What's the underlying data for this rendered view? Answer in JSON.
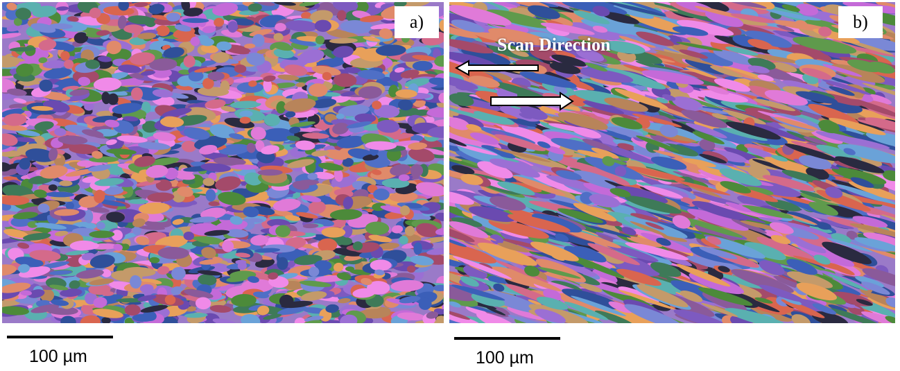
{
  "panels": [
    {
      "label": "a)",
      "scale_bar_text": "100 µm"
    },
    {
      "label": "b)",
      "scale_bar_text": "100 µm"
    }
  ],
  "annotation": {
    "text": "Scan Direction"
  },
  "colors": {
    "grain_palette": [
      "#c46ad8",
      "#7a88d6",
      "#4f6fc6",
      "#3b5fb8",
      "#5f9a4c",
      "#4c8a3a",
      "#e08a6a",
      "#d9654f",
      "#e8a05a",
      "#b8845a",
      "#9b6fd4",
      "#7d5ac0",
      "#e07ad8",
      "#f08ae8",
      "#6aa2d8",
      "#5ab0b0",
      "#3e7a58",
      "#c49a6a",
      "#a44a6a",
      "#2a2a40",
      "#8a5a9a",
      "#d46a8a",
      "#6a4ab0",
      "#2f4f9a"
    ],
    "arrow_fill": "#ffffff",
    "arrow_stroke": "#000000"
  }
}
